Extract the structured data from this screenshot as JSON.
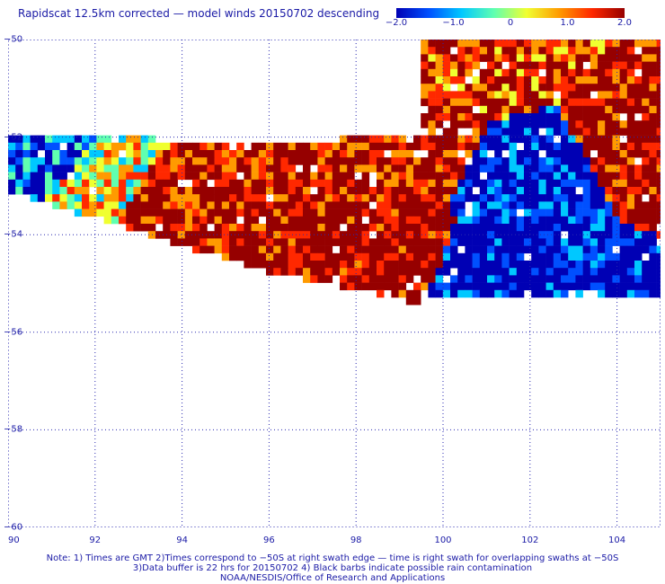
{
  "title": "Rapidscat 12.5km corrected — model winds 20150702 descending",
  "colorbar": {
    "ticks": [
      "−2.0",
      "−1.0",
      "0",
      "1.0",
      "2.0"
    ],
    "tick_values": [
      -2.0,
      -1.0,
      0,
      1.0,
      2.0
    ],
    "range": [
      -2.0,
      2.0
    ],
    "colors": [
      "#0000b4",
      "#0050ff",
      "#00c8ff",
      "#60ffb0",
      "#f0ff30",
      "#ff9a00",
      "#ff2800",
      "#960000"
    ]
  },
  "axes": {
    "x": {
      "ticks": [
        "90",
        "92",
        "94",
        "96",
        "98",
        "100",
        "102",
        "104"
      ],
      "range": [
        90,
        105
      ]
    },
    "y": {
      "ticks": [
        "−50",
        "−52",
        "−54",
        "−56",
        "−58",
        "−60"
      ],
      "range": [
        -60,
        -50
      ]
    },
    "grid": true,
    "grid_style": "dotted"
  },
  "notes": {
    "line1": "Note: 1) Times are GMT 2)Times correspond to −50S at right swath edge — time is right swath for overlapping swaths at −50S",
    "line2": "3)Data buffer is 22 hrs for 20150702 4) Black barbs indicate possible rain contamination",
    "line3": "NOAA/NESDIS/Office of Research and Applications"
  },
  "chart_data": {
    "type": "heatmap",
    "title": "Rapidscat 12.5km corrected — model winds 20150702 descending",
    "x_range": [
      90,
      105
    ],
    "y_range": [
      -60,
      -50
    ],
    "value_range": [
      -2.0,
      2.0
    ],
    "grid": true,
    "legend": "colorbar top-right",
    "swath_regions": [
      {
        "lon": [
          90.0,
          91.5
        ],
        "lat": [
          -52.6,
          -51.6
        ],
        "mean": -1.2
      },
      {
        "lon": [
          91.5,
          93.5
        ],
        "lat": [
          -53.5,
          -52.2
        ],
        "mean": 0.3
      },
      {
        "lon": [
          92.5,
          94.5
        ],
        "lat": [
          -53.8,
          -52.6
        ],
        "mean": 1.6
      },
      {
        "lon": [
          93.5,
          96.5
        ],
        "lat": [
          -54.6,
          -54.0
        ],
        "mean": 1.8
      },
      {
        "lon": [
          94.5,
          97.0
        ],
        "lat": [
          -53.6,
          -52.8
        ],
        "mean": 1.7
      },
      {
        "lon": [
          96.5,
          99.0
        ],
        "lat": [
          -54.4,
          -53.6
        ],
        "mean": 1.9
      },
      {
        "lon": [
          98.5,
          100.0
        ],
        "lat": [
          -52.5,
          -51.3
        ],
        "mean": 1.7
      },
      {
        "lon": [
          100.0,
          102.0
        ],
        "lat": [
          -51.0,
          -50.0
        ],
        "mean": 1.3
      },
      {
        "lon": [
          101.0,
          103.5
        ],
        "lat": [
          -53.8,
          -51.5
        ],
        "mean": -1.8
      },
      {
        "lon": [
          103.5,
          105.0
        ],
        "lat": [
          -52.6,
          -51.6
        ],
        "mean": 1.8
      },
      {
        "lon": [
          100.0,
          104.5
        ],
        "lat": [
          -55.2,
          -54.5
        ],
        "mean": -1.9
      }
    ]
  }
}
